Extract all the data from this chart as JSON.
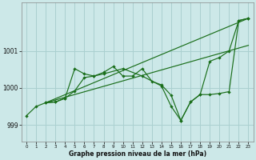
{
  "xlabel": "Graphe pression niveau de la mer (hPa)",
  "bg_color": "#cce8e8",
  "grid_color": "#aad0d0",
  "line_color": "#1a6e1a",
  "x_ticks": [
    0,
    1,
    2,
    3,
    4,
    5,
    6,
    7,
    8,
    9,
    10,
    11,
    12,
    13,
    14,
    15,
    16,
    17,
    18,
    19,
    20,
    21,
    22,
    23
  ],
  "ylim": [
    998.55,
    1002.3
  ],
  "yticks": [
    999,
    1000,
    1001
  ],
  "series1": [
    [
      0,
      999.25
    ],
    [
      1,
      999.5
    ],
    [
      2,
      999.6
    ],
    [
      3,
      999.62
    ],
    [
      4,
      999.72
    ],
    [
      5,
      1000.52
    ],
    [
      6,
      1000.38
    ],
    [
      7,
      1000.32
    ],
    [
      8,
      1000.42
    ],
    [
      9,
      1000.58
    ],
    [
      10,
      1000.32
    ],
    [
      11,
      1000.32
    ],
    [
      12,
      1000.52
    ],
    [
      13,
      1000.18
    ],
    [
      14,
      1000.08
    ],
    [
      15,
      999.8
    ],
    [
      16,
      999.12
    ],
    [
      17,
      999.62
    ],
    [
      18,
      999.82
    ],
    [
      19,
      1000.72
    ],
    [
      20,
      1000.82
    ],
    [
      21,
      1001.0
    ],
    [
      22,
      1001.82
    ],
    [
      23,
      1001.88
    ]
  ],
  "series2": [
    [
      2,
      999.6
    ],
    [
      3,
      999.62
    ],
    [
      4,
      999.72
    ],
    [
      5,
      999.92
    ],
    [
      6,
      1000.28
    ],
    [
      7,
      1000.32
    ],
    [
      8,
      1000.38
    ],
    [
      10,
      1000.52
    ],
    [
      12,
      1000.32
    ],
    [
      14,
      1000.05
    ],
    [
      15,
      999.5
    ],
    [
      16,
      999.12
    ],
    [
      17,
      999.62
    ],
    [
      18,
      999.82
    ],
    [
      19,
      999.82
    ],
    [
      20,
      999.85
    ],
    [
      21,
      999.9
    ],
    [
      22,
      1001.82
    ],
    [
      23,
      1001.88
    ]
  ],
  "line_a": {
    "x0": 2,
    "x1": 23,
    "y0": 999.6,
    "y1": 1001.88
  },
  "line_b": {
    "x0": 2,
    "x1": 23,
    "y0": 999.6,
    "y1": 1001.15
  }
}
